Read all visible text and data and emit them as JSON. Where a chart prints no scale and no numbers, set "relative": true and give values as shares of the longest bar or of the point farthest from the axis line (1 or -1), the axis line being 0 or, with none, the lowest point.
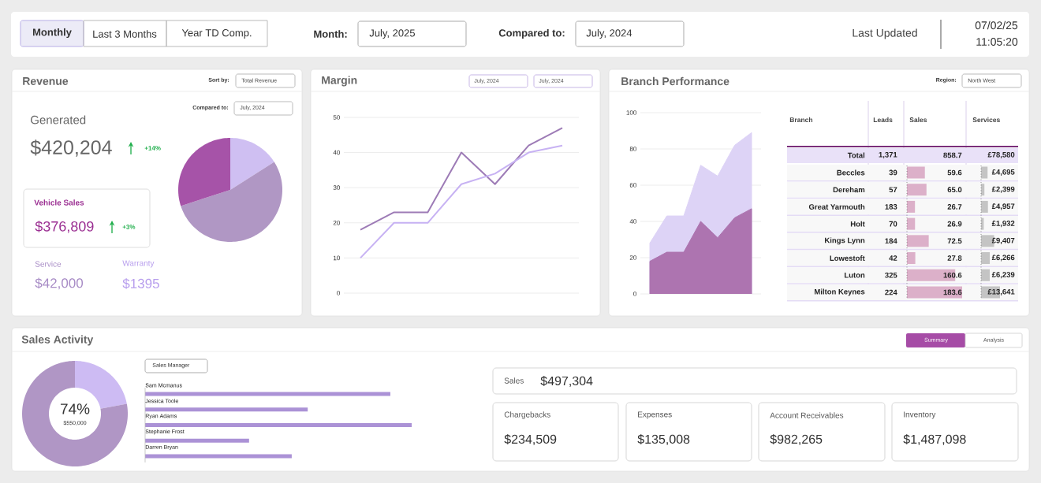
{
  "chart_data": [
    {
      "type": "other",
      "annotations": [
        "Monthly",
        "Last 3 Months",
        "Year TD Comp.",
        "Month:",
        "July, 2025",
        "Compared to:",
        "July, 2024",
        "Last Updated",
        "07/02/25",
        "11:05:20"
      ]
    },
    {
      "type": "pie",
      "title": "Revenue",
      "categories": [
        null,
        null,
        null
      ],
      "values": [
        16,
        54,
        30
      ],
      "colors": [
        "#cfbff2",
        "#b097c4",
        "#a653a8"
      ],
      "annotations": [
        "Sort by:",
        "Total Revenue",
        "Compared to:",
        "July, 2024",
        "Generated",
        "$420,204",
        "+14%",
        "Vehicle Sales",
        "$376,809",
        "+3%",
        "Service",
        "$42,000",
        "Warranty",
        "$1395"
      ]
    },
    {
      "type": "line",
      "title": "Margin",
      "categories": [
        null,
        null,
        null,
        null,
        null,
        null,
        null
      ],
      "series": [
        {
          "color": "#9d7bb6",
          "values": [
            18,
            23,
            23,
            40,
            31,
            42,
            47
          ]
        },
        {
          "color": "#c7b2f3",
          "values": [
            10,
            20,
            20,
            31,
            34,
            40,
            42
          ]
        }
      ],
      "ylim": [
        0,
        50
      ],
      "yticks": [
        0,
        10,
        20,
        30,
        40,
        50
      ],
      "grid": "y",
      "annotations": [
        "July, 2024",
        "July, 2024"
      ]
    },
    {
      "type": "area",
      "title": "Branch Performance",
      "categories": [
        null,
        null,
        null,
        null,
        null,
        null,
        null
      ],
      "series": [
        {
          "color": "#ddd3f6",
          "values": [
            28,
            43,
            43,
            71,
            65,
            82,
            89
          ]
        },
        {
          "color": "#ad74b0",
          "values": [
            18,
            23,
            23,
            40,
            31,
            42,
            47
          ]
        }
      ],
      "ylim": [
        0,
        100
      ],
      "yticks": [
        0,
        20,
        40,
        60,
        80,
        100
      ],
      "grid": "y",
      "annotations": [
        "Region:",
        "North West"
      ]
    },
    {
      "type": "bar",
      "orientation": "horizontal",
      "ylabel": "Branch",
      "xlabel": "Sales",
      "categories": [
        "Beccles",
        "Dereham",
        "Great Yarmouth",
        "Holt",
        "Kings Lynn",
        "Lowestoft",
        "Luton",
        "Milton Keynes"
      ],
      "values": [
        59.6,
        65.0,
        26.7,
        26.9,
        72.5,
        27.8,
        160.6,
        183.6
      ],
      "value_labels": [
        "59.6",
        "65.0",
        "26.7",
        "26.9",
        "72.5",
        "27.8",
        "160.6",
        "183.6"
      ],
      "color": "#dcb0c9"
    },
    {
      "type": "bar",
      "orientation": "horizontal",
      "xlabel": "Services",
      "categories": [
        null,
        null,
        null,
        null,
        null,
        null,
        null,
        null
      ],
      "values": [
        4695,
        2399,
        4957,
        1932,
        9407,
        6266,
        6239,
        13641
      ],
      "value_labels": [
        "£4,695",
        "£2,399",
        "£4,957",
        "£1,932",
        "£9,407",
        "£6,266",
        "£6,239",
        "£13,641"
      ],
      "color": "#c4c4c4"
    },
    {
      "type": "other",
      "annotations": [
        "Leads",
        "Total",
        "1,371",
        "858.7",
        "£78,580",
        "39",
        "57",
        "183",
        "70",
        "184",
        "42",
        "325",
        "224"
      ]
    },
    {
      "type": "donut",
      "title": "Sales Activity",
      "categories": [
        null,
        null
      ],
      "values": [
        22,
        78
      ],
      "colors": [
        "#cdbbf3",
        "#b096c5"
      ],
      "annotations": [
        "74%",
        "$550,000",
        "Summary",
        "Analysis"
      ]
    },
    {
      "type": "bar",
      "orientation": "horizontal",
      "relative": true,
      "categories": [
        "Sam Mcmanus",
        "Jessica Toole",
        "Ryan Adams",
        "Stephanie Frost",
        "Darren Bryan"
      ],
      "values": [
        0.92,
        0.61,
        1,
        0.39,
        0.55
      ],
      "color": "#ab92d6",
      "annotations": [
        "Sales Manager"
      ]
    },
    {
      "type": "other",
      "annotations": [
        "Sales",
        "$497,304",
        "Chargebacks",
        "$234,509",
        "Expenses",
        "$135,008",
        "Account Receivables",
        "$982,265",
        "Inventory",
        "$1,487,098"
      ]
    }
  ]
}
